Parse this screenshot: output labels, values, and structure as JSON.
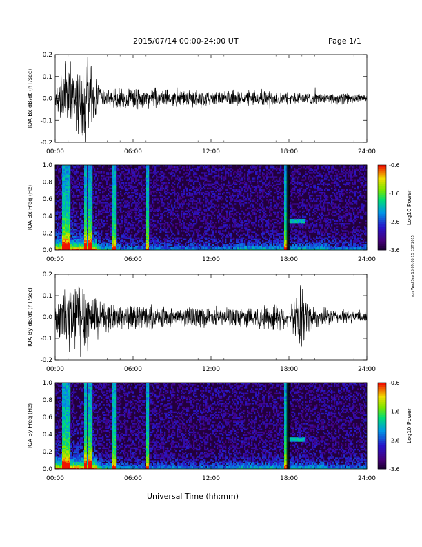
{
  "header": {
    "date_range": "2015/07/14  00:00-24:00 UT",
    "page": "Page 1/1"
  },
  "footer": {
    "xlabel": "Universal Time (hh:mm)",
    "stamp": "run Wed Sep 16 09:05:15 EDT 2015"
  },
  "chart_data": [
    {
      "type": "line",
      "ylabel": "IQA Bx dB/dt (nT/sec)",
      "x_range_hours": [
        0,
        24
      ],
      "x_ticks": [
        "00:00",
        "06:00",
        "12:00",
        "18:00",
        "24:00"
      ],
      "ylim": [
        -0.2,
        0.2
      ],
      "y_ticks": [
        "-0.2",
        "-0.1",
        "0.0",
        "0.1",
        "0.2"
      ],
      "envelope": {
        "hours": [
          0.0,
          0.5,
          1.0,
          1.5,
          2.0,
          2.5,
          3.0,
          3.5,
          4.0,
          5.0,
          6.0,
          7.0,
          8.0,
          9.0,
          10.0,
          11.0,
          12.0,
          13.0,
          14.0,
          15.0,
          16.0,
          17.0,
          17.6,
          18.0,
          18.5,
          19.0,
          20.0,
          21.0,
          22.0,
          23.0,
          24.0
        ],
        "amplitude": [
          0.06,
          0.12,
          0.22,
          0.16,
          0.2,
          0.2,
          0.14,
          0.06,
          0.05,
          0.05,
          0.055,
          0.05,
          0.045,
          0.04,
          0.04,
          0.045,
          0.04,
          0.035,
          0.035,
          0.04,
          0.04,
          0.04,
          0.03,
          0.035,
          0.03,
          0.035,
          0.03,
          0.03,
          0.03,
          0.025,
          0.02
        ]
      },
      "gap_hours": [
        17.9,
        18.05
      ]
    },
    {
      "type": "heatmap",
      "ylabel": "IQA Bx Freq (Hz)",
      "x_range_hours": [
        0,
        24
      ],
      "x_ticks": [
        "00:00",
        "06:00",
        "12:00",
        "18:00",
        "24:00"
      ],
      "ylim": [
        0.0,
        1.0
      ],
      "y_ticks": [
        "0.0",
        "0.2",
        "0.4",
        "0.6",
        "0.8",
        "1.0"
      ],
      "colorbar": {
        "label": "Log10 Power",
        "range": [
          -3.6,
          -0.6
        ],
        "ticks": [
          "-0.6",
          "-1.6",
          "-2.6",
          "-3.6"
        ]
      },
      "bright_vertical_hours": [
        0.7,
        1.0,
        2.3,
        2.7,
        4.5,
        7.1,
        17.8
      ],
      "band_hours": [
        17.9,
        19.2
      ],
      "band_freq_hz": 0.35
    },
    {
      "type": "line",
      "ylabel": "IQA By dB/dt (nT/sec)",
      "x_range_hours": [
        0,
        24
      ],
      "x_ticks": [
        "00:00",
        "06:00",
        "12:00",
        "18:00",
        "24:00"
      ],
      "ylim": [
        -0.2,
        0.2
      ],
      "y_ticks": [
        "-0.2",
        "-0.1",
        "0.0",
        "0.1",
        "0.2"
      ],
      "envelope": {
        "hours": [
          0.0,
          0.5,
          1.0,
          1.5,
          2.0,
          2.5,
          3.0,
          3.5,
          4.0,
          5.0,
          6.0,
          7.0,
          8.0,
          9.0,
          10.0,
          11.0,
          12.0,
          13.0,
          14.0,
          15.0,
          16.0,
          17.0,
          17.6,
          18.0,
          18.5,
          19.0,
          19.5,
          20.0,
          21.0,
          22.0,
          23.0,
          24.0
        ],
        "amplitude": [
          0.06,
          0.14,
          0.22,
          0.2,
          0.22,
          0.18,
          0.12,
          0.1,
          0.08,
          0.07,
          0.07,
          0.07,
          0.06,
          0.05,
          0.05,
          0.06,
          0.05,
          0.045,
          0.05,
          0.06,
          0.07,
          0.08,
          0.06,
          0.08,
          0.1,
          0.2,
          0.1,
          0.06,
          0.045,
          0.04,
          0.035,
          0.03
        ]
      },
      "gap_hours": [
        17.9,
        18.05
      ]
    },
    {
      "type": "heatmap",
      "ylabel": "IQA By Freq (Hz)",
      "x_range_hours": [
        0,
        24
      ],
      "x_ticks": [
        "00:00",
        "06:00",
        "12:00",
        "18:00",
        "24:00"
      ],
      "ylim": [
        0.0,
        1.0
      ],
      "y_ticks": [
        "0.0",
        "0.2",
        "0.4",
        "0.6",
        "0.8",
        "1.0"
      ],
      "colorbar": {
        "label": "Log10 Power",
        "range": [
          -3.6,
          -0.6
        ],
        "ticks": [
          "-0.6",
          "-1.6",
          "-2.6",
          "-3.6"
        ]
      },
      "bright_vertical_hours": [
        0.7,
        1.0,
        2.3,
        2.7,
        4.5,
        7.1,
        17.8
      ],
      "band_hours": [
        17.9,
        19.2
      ],
      "band_freq_hz": 0.35
    }
  ]
}
